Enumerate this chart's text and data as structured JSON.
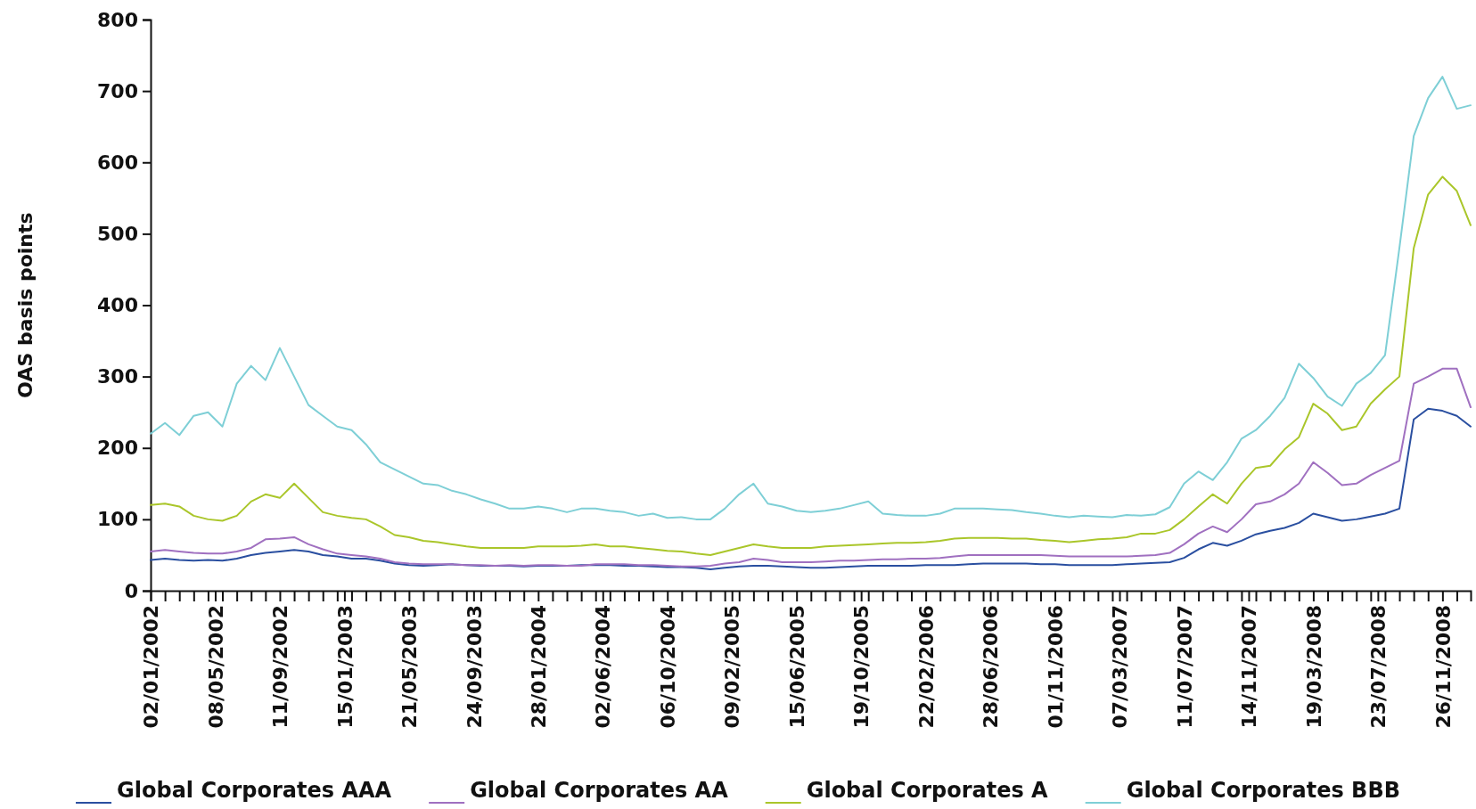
{
  "chart_data": {
    "type": "line",
    "ylabel": "OAS basis points",
    "legend": "bottom",
    "grid": false,
    "marker": "none",
    "line_style": "solid",
    "x": [
      "2002-01-02",
      "2002-01-30",
      "2002-02-27",
      "2002-03-27",
      "2002-04-24",
      "2002-05-22",
      "2002-06-19",
      "2002-07-17",
      "2002-08-14",
      "2002-09-11",
      "2002-10-09",
      "2002-11-06",
      "2002-12-04",
      "2003-01-01",
      "2003-01-29",
      "2003-02-26",
      "2003-03-26",
      "2003-04-23",
      "2003-05-21",
      "2003-06-18",
      "2003-07-16",
      "2003-08-13",
      "2003-09-10",
      "2003-10-08",
      "2003-11-05",
      "2003-12-03",
      "2003-12-31",
      "2004-01-28",
      "2004-02-25",
      "2004-03-24",
      "2004-04-21",
      "2004-05-19",
      "2004-06-16",
      "2004-07-14",
      "2004-08-11",
      "2004-09-08",
      "2004-10-06",
      "2004-11-03",
      "2004-12-01",
      "2004-12-29",
      "2005-01-26",
      "2005-02-23",
      "2005-03-23",
      "2005-04-20",
      "2005-05-18",
      "2005-06-15",
      "2005-07-13",
      "2005-08-10",
      "2005-09-07",
      "2005-10-05",
      "2005-11-02",
      "2005-11-30",
      "2005-12-28",
      "2006-01-25",
      "2006-02-22",
      "2006-03-22",
      "2006-04-19",
      "2006-05-17",
      "2006-06-14",
      "2006-07-12",
      "2006-08-09",
      "2006-09-06",
      "2006-10-04",
      "2006-11-01",
      "2006-11-29",
      "2006-12-27",
      "2007-01-24",
      "2007-02-21",
      "2007-03-21",
      "2007-04-18",
      "2007-05-16",
      "2007-06-13",
      "2007-07-11",
      "2007-08-08",
      "2007-09-05",
      "2007-10-03",
      "2007-10-31",
      "2007-11-28",
      "2007-12-26",
      "2008-01-23",
      "2008-02-20",
      "2008-03-19",
      "2008-04-16",
      "2008-05-14",
      "2008-06-11",
      "2008-07-09",
      "2008-08-06",
      "2008-09-03",
      "2008-10-01",
      "2008-10-29",
      "2008-11-26",
      "2008-12-24",
      "2009-01-20"
    ],
    "xlim": [
      "2002-01-02",
      "2009-01-20"
    ],
    "xticks": [
      {
        "value": "2002-01-02",
        "label": "02/01/2002"
      },
      {
        "value": "2002-05-08",
        "label": "08/05/2002"
      },
      {
        "value": "2002-09-11",
        "label": "11/09/2002"
      },
      {
        "value": "2003-01-15",
        "label": "15/01/2003"
      },
      {
        "value": "2003-05-21",
        "label": "21/05/2003"
      },
      {
        "value": "2003-09-24",
        "label": "24/09/2003"
      },
      {
        "value": "2004-01-28",
        "label": "28/01/2004"
      },
      {
        "value": "2004-06-02",
        "label": "02/06/2004"
      },
      {
        "value": "2004-10-06",
        "label": "06/10/2004"
      },
      {
        "value": "2005-02-09",
        "label": "09/02/2005"
      },
      {
        "value": "2005-06-15",
        "label": "15/06/2005"
      },
      {
        "value": "2005-10-19",
        "label": "19/10/2005"
      },
      {
        "value": "2006-02-22",
        "label": "22/02/2006"
      },
      {
        "value": "2006-06-28",
        "label": "28/06/2006"
      },
      {
        "value": "2006-11-01",
        "label": "01/11/2006"
      },
      {
        "value": "2007-03-07",
        "label": "07/03/2007"
      },
      {
        "value": "2007-07-11",
        "label": "11/07/2007"
      },
      {
        "value": "2007-11-14",
        "label": "14/11/2007"
      },
      {
        "value": "2008-03-19",
        "label": "19/03/2008"
      },
      {
        "value": "2008-07-23",
        "label": "23/07/2008"
      },
      {
        "value": "2008-11-26",
        "label": "26/11/2008"
      },
      {
        "value": "2002-01-30",
        "label": null
      },
      {
        "value": "2002-02-27",
        "label": null
      },
      {
        "value": "2002-03-27",
        "label": null
      },
      {
        "value": "2002-04-24",
        "label": null
      },
      {
        "value": "2002-05-22",
        "label": null
      },
      {
        "value": "2002-06-19",
        "label": null
      },
      {
        "value": "2002-07-17",
        "label": null
      },
      {
        "value": "2002-08-14",
        "label": null
      },
      {
        "value": "2002-10-09",
        "label": null
      },
      {
        "value": "2002-11-06",
        "label": null
      },
      {
        "value": "2002-12-04",
        "label": null
      },
      {
        "value": "2003-01-01",
        "label": null
      },
      {
        "value": "2003-01-29",
        "label": null
      },
      {
        "value": "2003-02-26",
        "label": null
      },
      {
        "value": "2003-03-26",
        "label": null
      },
      {
        "value": "2003-04-23",
        "label": null
      },
      {
        "value": "2003-06-18",
        "label": null
      },
      {
        "value": "2003-07-16",
        "label": null
      },
      {
        "value": "2003-08-13",
        "label": null
      },
      {
        "value": "2003-09-10",
        "label": null
      },
      {
        "value": "2003-10-08",
        "label": null
      },
      {
        "value": "2003-11-05",
        "label": null
      },
      {
        "value": "2003-12-03",
        "label": null
      },
      {
        "value": "2003-12-31",
        "label": null
      },
      {
        "value": "2004-02-25",
        "label": null
      },
      {
        "value": "2004-03-24",
        "label": null
      },
      {
        "value": "2004-04-21",
        "label": null
      },
      {
        "value": "2004-05-19",
        "label": null
      },
      {
        "value": "2004-06-16",
        "label": null
      },
      {
        "value": "2004-07-14",
        "label": null
      },
      {
        "value": "2004-08-11",
        "label": null
      },
      {
        "value": "2004-09-08",
        "label": null
      },
      {
        "value": "2004-11-03",
        "label": null
      },
      {
        "value": "2004-12-01",
        "label": null
      },
      {
        "value": "2004-12-29",
        "label": null
      },
      {
        "value": "2005-01-26",
        "label": null
      },
      {
        "value": "2005-02-23",
        "label": null
      },
      {
        "value": "2005-03-23",
        "label": null
      },
      {
        "value": "2005-04-20",
        "label": null
      },
      {
        "value": "2005-05-18",
        "label": null
      },
      {
        "value": "2005-07-13",
        "label": null
      },
      {
        "value": "2005-08-10",
        "label": null
      },
      {
        "value": "2005-09-07",
        "label": null
      },
      {
        "value": "2005-10-05",
        "label": null
      },
      {
        "value": "2005-11-02",
        "label": null
      },
      {
        "value": "2005-11-30",
        "label": null
      },
      {
        "value": "2005-12-28",
        "label": null
      },
      {
        "value": "2006-01-25",
        "label": null
      },
      {
        "value": "2006-03-22",
        "label": null
      },
      {
        "value": "2006-04-19",
        "label": null
      },
      {
        "value": "2006-05-17",
        "label": null
      },
      {
        "value": "2006-06-14",
        "label": null
      },
      {
        "value": "2006-07-12",
        "label": null
      },
      {
        "value": "2006-08-09",
        "label": null
      },
      {
        "value": "2006-09-06",
        "label": null
      },
      {
        "value": "2006-10-04",
        "label": null
      },
      {
        "value": "2006-11-29",
        "label": null
      },
      {
        "value": "2006-12-27",
        "label": null
      },
      {
        "value": "2007-01-24",
        "label": null
      },
      {
        "value": "2007-02-21",
        "label": null
      },
      {
        "value": "2007-03-21",
        "label": null
      },
      {
        "value": "2007-04-18",
        "label": null
      },
      {
        "value": "2007-05-16",
        "label": null
      },
      {
        "value": "2007-06-13",
        "label": null
      },
      {
        "value": "2007-08-08",
        "label": null
      },
      {
        "value": "2007-09-05",
        "label": null
      },
      {
        "value": "2007-10-03",
        "label": null
      },
      {
        "value": "2007-10-31",
        "label": null
      },
      {
        "value": "2007-11-28",
        "label": null
      },
      {
        "value": "2007-12-26",
        "label": null
      },
      {
        "value": "2008-01-23",
        "label": null
      },
      {
        "value": "2008-02-20",
        "label": null
      },
      {
        "value": "2008-04-16",
        "label": null
      },
      {
        "value": "2008-05-14",
        "label": null
      },
      {
        "value": "2008-06-11",
        "label": null
      },
      {
        "value": "2008-07-09",
        "label": null
      },
      {
        "value": "2008-08-06",
        "label": null
      },
      {
        "value": "2008-09-03",
        "label": null
      },
      {
        "value": "2008-10-01",
        "label": null
      },
      {
        "value": "2008-10-29",
        "label": null
      },
      {
        "value": "2008-12-24",
        "label": null
      }
    ],
    "ylim": [
      0,
      800
    ],
    "yticks": [
      0,
      100,
      200,
      300,
      400,
      500,
      600,
      700,
      800
    ],
    "series": [
      {
        "name": "Global Corporates AAA",
        "color": "#2a4fa0",
        "values": [
          43,
          45,
          43,
          42,
          43,
          42,
          45,
          50,
          53,
          55,
          57,
          55,
          50,
          48,
          45,
          45,
          42,
          38,
          36,
          35,
          36,
          37,
          36,
          35,
          35,
          35,
          34,
          35,
          35,
          35,
          36,
          36,
          36,
          35,
          35,
          34,
          33,
          33,
          32,
          30,
          32,
          34,
          35,
          35,
          34,
          33,
          32,
          32,
          33,
          34,
          35,
          35,
          35,
          35,
          36,
          36,
          36,
          37,
          38,
          38,
          38,
          38,
          37,
          37,
          36,
          36,
          36,
          36,
          37,
          38,
          39,
          40,
          46,
          58,
          67,
          63,
          70,
          79,
          84,
          88,
          95,
          108,
          103,
          98,
          100,
          104,
          108,
          115,
          240,
          255,
          252,
          245,
          230
        ]
      },
      {
        "name": "Global Corporates AA",
        "color": "#a070c0",
        "values": [
          55,
          57,
          55,
          53,
          52,
          52,
          55,
          60,
          72,
          73,
          75,
          65,
          58,
          52,
          50,
          48,
          45,
          40,
          38,
          37,
          37,
          37,
          36,
          36,
          35,
          36,
          35,
          36,
          36,
          35,
          35,
          37,
          37,
          37,
          36,
          36,
          35,
          34,
          34,
          35,
          38,
          40,
          45,
          43,
          40,
          40,
          40,
          41,
          42,
          42,
          43,
          44,
          44,
          45,
          45,
          46,
          48,
          50,
          50,
          50,
          50,
          50,
          50,
          49,
          48,
          48,
          48,
          48,
          48,
          49,
          50,
          53,
          65,
          80,
          90,
          82,
          100,
          121,
          125,
          135,
          150,
          180,
          165,
          148,
          150,
          162,
          172,
          182,
          290,
          300,
          311,
          311,
          257
        ]
      },
      {
        "name": "Global Corporates A",
        "color": "#aac62a",
        "values": [
          120,
          122,
          118,
          105,
          100,
          98,
          105,
          125,
          135,
          130,
          150,
          130,
          110,
          105,
          102,
          100,
          90,
          78,
          75,
          70,
          68,
          65,
          62,
          60,
          60,
          60,
          60,
          62,
          62,
          62,
          63,
          65,
          62,
          62,
          60,
          58,
          56,
          55,
          52,
          50,
          55,
          60,
          65,
          62,
          60,
          60,
          60,
          62,
          63,
          64,
          65,
          66,
          67,
          67,
          68,
          70,
          73,
          74,
          74,
          74,
          73,
          73,
          71,
          70,
          68,
          70,
          72,
          73,
          75,
          80,
          80,
          85,
          100,
          118,
          135,
          122,
          150,
          172,
          175,
          198,
          215,
          262,
          248,
          225,
          230,
          262,
          282,
          300,
          480,
          555,
          580,
          560,
          512
        ]
      },
      {
        "name": "Global Corporates BBB",
        "color": "#7ecfd6",
        "values": [
          220,
          235,
          218,
          245,
          250,
          230,
          290,
          315,
          295,
          340,
          300,
          260,
          245,
          230,
          225,
          205,
          180,
          170,
          160,
          150,
          148,
          140,
          135,
          128,
          122,
          115,
          115,
          118,
          115,
          110,
          115,
          115,
          112,
          110,
          105,
          108,
          102,
          103,
          100,
          100,
          115,
          135,
          150,
          122,
          118,
          112,
          110,
          112,
          115,
          120,
          125,
          108,
          106,
          105,
          105,
          108,
          115,
          115,
          115,
          114,
          113,
          110,
          108,
          105,
          103,
          105,
          104,
          103,
          106,
          105,
          107,
          117,
          150,
          167,
          155,
          180,
          213,
          225,
          245,
          270,
          318,
          298,
          272,
          259,
          290,
          305,
          330,
          480,
          637,
          690,
          720,
          675,
          680
        ]
      }
    ]
  }
}
